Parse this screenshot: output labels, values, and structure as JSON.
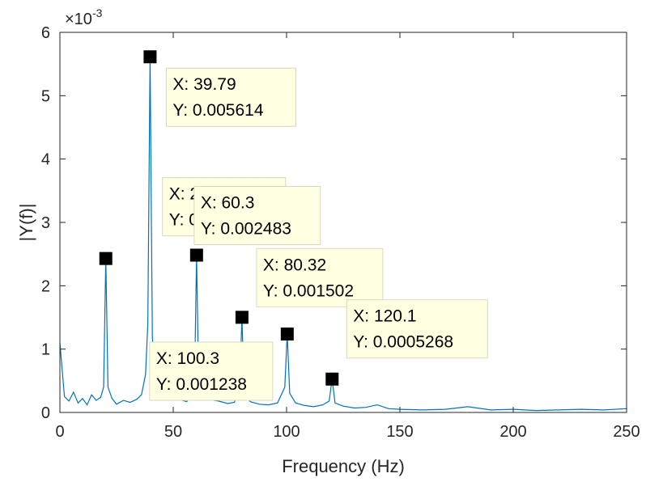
{
  "chart_data": {
    "type": "line",
    "xlabel": "Frequency (Hz)",
    "ylabel": "|Y(f)|",
    "y_exponent_label": "×10",
    "y_exponent_power": "-3",
    "xlim": [
      0,
      250
    ],
    "ylim": [
      0,
      0.006
    ],
    "xticks": [
      0,
      50,
      100,
      150,
      200,
      250
    ],
    "xtick_labels": [
      "0",
      "50",
      "100",
      "150",
      "200",
      "250"
    ],
    "yticks": [
      0,
      0.001,
      0.002,
      0.003,
      0.004,
      0.005,
      0.006
    ],
    "ytick_labels": [
      "0",
      "1",
      "2",
      "3",
      "4",
      "5",
      "6"
    ],
    "grid": false,
    "line_color": "#0072BD",
    "series": [
      {
        "values_x": [
          0,
          2,
          4,
          6,
          8,
          10,
          12,
          14,
          16,
          18,
          19.3,
          20.26,
          21.2,
          23,
          25,
          28,
          31,
          34,
          36,
          37.8,
          38.8,
          39.79,
          40.8,
          42,
          45,
          48,
          50,
          53,
          56,
          58.8,
          59.6,
          60.3,
          61.1,
          63,
          66,
          70,
          74,
          77,
          79.3,
          80.32,
          81.3,
          84,
          88,
          92,
          96,
          99.2,
          100.3,
          101.4,
          104,
          108,
          112,
          116,
          118.8,
          120.1,
          121.4,
          125,
          130,
          135,
          140,
          145,
          150,
          160,
          170,
          180,
          190,
          200,
          210,
          220,
          230,
          240,
          250
        ],
        "values_y": [
          0.0011,
          0.00025,
          0.00018,
          0.00032,
          0.00015,
          0.00022,
          0.00012,
          0.00028,
          0.00019,
          0.00024,
          0.0004,
          0.00243,
          0.0004,
          0.00022,
          0.00013,
          0.00019,
          0.00016,
          0.00021,
          0.00028,
          0.0006,
          0.0014,
          0.005614,
          0.0012,
          0.0005,
          0.0003,
          0.00026,
          0.00022,
          0.0002,
          0.00017,
          0.0004,
          0.0009,
          0.002483,
          0.0007,
          0.0003,
          0.0002,
          0.00018,
          0.00014,
          0.00016,
          0.0004,
          0.001502,
          0.0003,
          0.00017,
          0.00013,
          0.00012,
          0.00015,
          0.0004,
          0.001238,
          0.0003,
          0.00015,
          0.00011,
          9e-05,
          0.00012,
          0.00018,
          0.0005268,
          0.00015,
          0.0001,
          7e-05,
          8e-05,
          0.00012,
          6e-05,
          5e-05,
          4e-05,
          5e-05,
          9e-05,
          4e-05,
          5e-05,
          3e-05,
          4e-05,
          5e-05,
          4e-05,
          6e-05
        ]
      }
    ],
    "datatips": [
      {
        "x": 39.79,
        "y": 0.005614,
        "x_text": "X: 39.79",
        "y_text": "Y: 0.005614"
      },
      {
        "x": 20.26,
        "y": 0.00243,
        "x_text": "X: 20.26",
        "y_text": "Y: 0.0024"
      },
      {
        "x": 60.3,
        "y": 0.002483,
        "x_text": "X: 60.3",
        "y_text": "Y: 0.002483"
      },
      {
        "x": 80.32,
        "y": 0.001502,
        "x_text": "X: 80.32",
        "y_text": "Y: 0.001502"
      },
      {
        "x": 120.1,
        "y": 0.0005268,
        "x_text": "X: 120.1",
        "y_text": "Y: 0.0005268"
      },
      {
        "x": 100.3,
        "y": 0.001238,
        "x_text": "X: 100.3",
        "y_text": "Y: 0.001238"
      }
    ]
  }
}
